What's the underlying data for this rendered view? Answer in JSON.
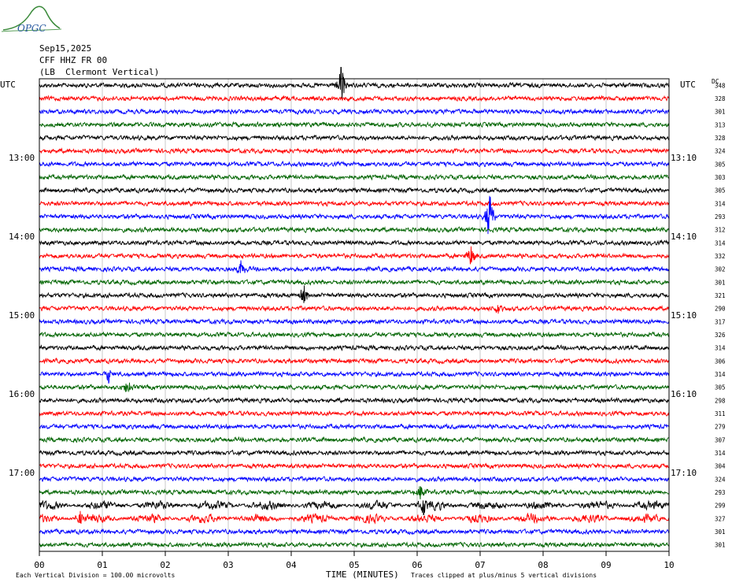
{
  "logo": {
    "text": "OPGC"
  },
  "header": {
    "date": "Sep15,2025",
    "station": "CFF HHZ FR 00",
    "location": "(LB  Clermont Vertical)"
  },
  "axis": {
    "left_unit": "UTC",
    "right_unit": "UTC",
    "dc_label": "DC",
    "xlabel": "TIME (MINUTES)",
    "footer_left": "Each Vertical Division =  100.00 microvolts",
    "footer_right": "Traces clipped at plus/minus 5 vertical divisions"
  },
  "chart_data": {
    "type": "line",
    "xlim": [
      0,
      10
    ],
    "x_ticks": [
      "00",
      "01",
      "02",
      "03",
      "04",
      "05",
      "06",
      "07",
      "08",
      "09",
      "10"
    ],
    "left_hour_labels": [
      "13:00",
      "14:00",
      "15:00",
      "16:00",
      "17:00"
    ],
    "right_hour_labels": [
      "13:10",
      "14:10",
      "15:10",
      "16:10",
      "17:10"
    ],
    "hour_label_rows": [
      6,
      12,
      18,
      24,
      30
    ],
    "trace_colors": [
      "#000000",
      "#ff0000",
      "#0000ff",
      "#006400"
    ],
    "dc_offsets": [
      348,
      328,
      301,
      313,
      328,
      324,
      305,
      303,
      305,
      314,
      293,
      312,
      314,
      332,
      302,
      301,
      321,
      290,
      317,
      326,
      314,
      306,
      314,
      305,
      298,
      311,
      279,
      307,
      314,
      304,
      324,
      293,
      299,
      327,
      301,
      301
    ],
    "events": [
      {
        "row": 0,
        "minute": 4.8,
        "amp": 3.0
      },
      {
        "row": 10,
        "minute": 7.15,
        "amp": 4.5
      },
      {
        "row": 13,
        "minute": 6.85,
        "amp": 1.8
      },
      {
        "row": 14,
        "minute": 3.2,
        "amp": 1.5
      },
      {
        "row": 16,
        "minute": 4.2,
        "amp": 1.5
      },
      {
        "row": 17,
        "minute": 7.3,
        "amp": 1.2
      },
      {
        "row": 22,
        "minute": 1.1,
        "amp": 1.2
      },
      {
        "row": 23,
        "minute": 1.4,
        "amp": 1.2
      },
      {
        "row": 31,
        "minute": 6.05,
        "amp": 1.3
      },
      {
        "row": 32,
        "minute": 6.1,
        "amp": 1.8
      },
      {
        "row": 33,
        "minute": 0.65,
        "amp": 1.3
      }
    ],
    "noisy_rows": [
      32,
      33
    ]
  }
}
